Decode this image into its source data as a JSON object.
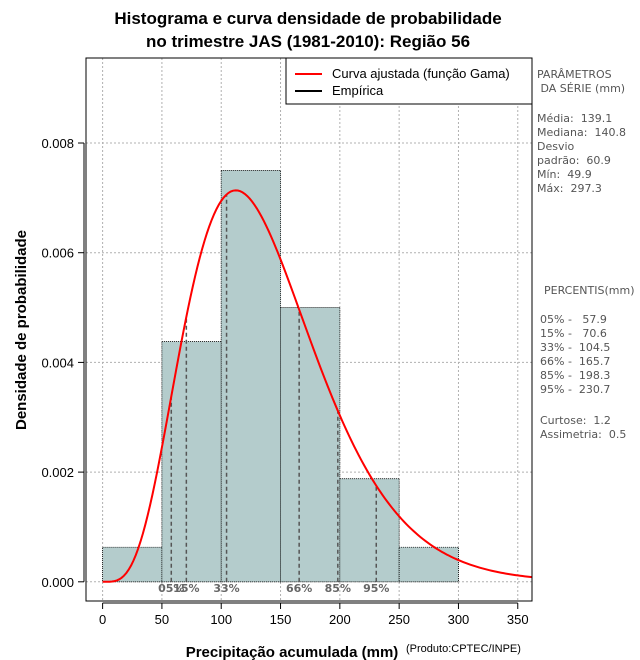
{
  "chart_data": {
    "type": "bar",
    "title": [
      "Histograma e curva densidade de probabilidade",
      "no trimestre JAS (1981-2010): Região 56"
    ],
    "xlabel": "Precipitação acumulada (mm)",
    "ylabel": "Densidade de probabilidade",
    "credit": "(Produto:CPTEC/INPE)",
    "xlim": [
      -14,
      362
    ],
    "ylim": [
      -0.00035,
      0.00955
    ],
    "xticks": [
      0,
      50,
      100,
      150,
      200,
      250,
      300,
      350
    ],
    "yticks": [
      "0.000",
      "0.002",
      "0.004",
      "0.006",
      "0.008"
    ],
    "ytick_values": [
      0,
      0.002,
      0.004,
      0.006,
      0.008
    ],
    "grid": true,
    "bins": [
      {
        "from": 0,
        "to": 50,
        "density": 0.00063
      },
      {
        "from": 50,
        "to": 100,
        "density": 0.00438
      },
      {
        "from": 100,
        "to": 150,
        "density": 0.0075
      },
      {
        "from": 150,
        "to": 200,
        "density": 0.005
      },
      {
        "from": 200,
        "to": 250,
        "density": 0.00188
      },
      {
        "from": 250,
        "to": 300,
        "density": 0.00063
      }
    ],
    "bar_color": "#b4cccc",
    "curve": {
      "name": "Curva ajustada (função Gama)",
      "distribution": "gamma",
      "shape": 5.2,
      "scale": 26.74,
      "color": "#ff0000"
    },
    "percentile_lines": [
      {
        "label": "05%",
        "x": 57.9
      },
      {
        "label": "15%",
        "x": 70.6
      },
      {
        "label": "33%",
        "x": 104.5
      },
      {
        "label": "66%",
        "x": 165.7
      },
      {
        "label": "85%",
        "x": 198.3
      },
      {
        "label": "95%",
        "x": 230.7
      }
    ],
    "legend": {
      "position": "top-right",
      "entries": [
        {
          "label": "Curva ajustada (função Gama)",
          "color": "#ff0000"
        },
        {
          "label": "Empírica",
          "color": "#000000"
        }
      ]
    }
  },
  "stats": {
    "params_title": "PARÂMETROS\n DA SÉRIE (mm)",
    "params_text": "Média:  139.1\nMediana:  140.8\nDesvio\npadrão:  60.9\nMín:  49.9\nMáx:  297.3",
    "percentis_title": "PERCENTIS(mm)",
    "percentis_text": "05% -   57.9\n15% -   70.6\n33% -  104.5\n66% -  165.7\n85% -  198.3\n95% -  230.7",
    "extra_text": "Curtose:  1.2\nAssimetria:  0.5"
  }
}
